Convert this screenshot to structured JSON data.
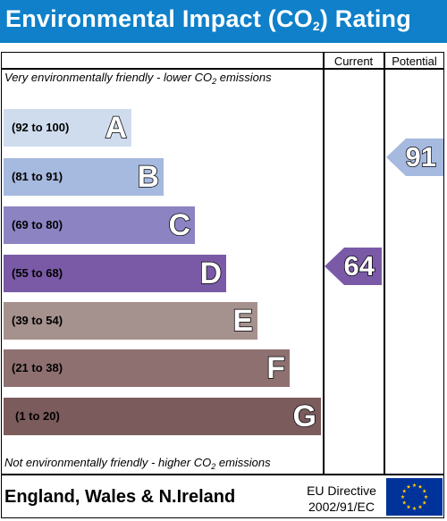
{
  "header": {
    "title_prefix": "Environmental Impact (CO",
    "title_sub": "2",
    "title_suffix": ") Rating"
  },
  "columns": {
    "current": "Current",
    "potential": "Potential"
  },
  "top_caption": {
    "before": "Very environmentally friendly - lower CO",
    "sub": "2",
    "after": " emissions"
  },
  "bottom_caption": {
    "before": "Not environmentally friendly - higher CO",
    "sub": "2",
    "after": " emissions"
  },
  "bands": [
    {
      "range": "(92 to 100)",
      "letter": "A",
      "color": "#cfdcee"
    },
    {
      "range": "(81 to 91)",
      "letter": "B",
      "color": "#a6b9df"
    },
    {
      "range": "(69 to 80)",
      "letter": "C",
      "color": "#8c83c3"
    },
    {
      "range": "(55 to 68)",
      "letter": "D",
      "color": "#7a5aa6"
    },
    {
      "range": "(39 to 54)",
      "letter": "E",
      "color": "#a5918d"
    },
    {
      "range": "(21 to 38)",
      "letter": "F",
      "color": "#8f7070"
    },
    {
      "range": "(1 to 20)",
      "letter": "G",
      "color": "#7b5b5b"
    }
  ],
  "current_rating": {
    "value": "64",
    "band": "D",
    "color": "#7a5aa6"
  },
  "potential_rating": {
    "value": "91",
    "band": "B",
    "color": "#a6b9df"
  },
  "footer": {
    "region": "England, Wales & N.Ireland",
    "directive_line1": "EU Directive",
    "directive_line2": "2002/91/EC",
    "flag_color": "#003399",
    "star_color": "#ffcc00"
  }
}
